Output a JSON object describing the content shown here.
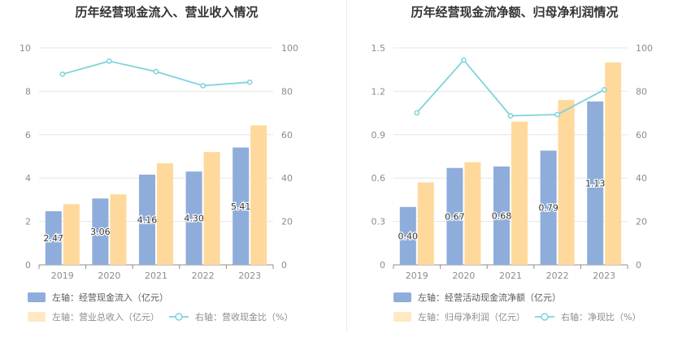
{
  "colors": {
    "primary": "#8FADDB",
    "secondary": "#FFD99B",
    "line": "#7ED3DB",
    "grid": "#E6E6E6",
    "axis": "#8C8C8C",
    "title": "#333333"
  },
  "chart_data": [
    {
      "type": "bar",
      "title": "历年经营现金流入、营业收入情况",
      "categories": [
        "2019",
        "2020",
        "2021",
        "2022",
        "2023"
      ],
      "left_axis": {
        "min": 0,
        "max": 10,
        "ticks": [
          "0",
          "2",
          "4",
          "6",
          "8",
          "10"
        ]
      },
      "right_axis": {
        "min": 0,
        "max": 100,
        "ticks": [
          "0",
          "20",
          "40",
          "60",
          "80",
          "100"
        ]
      },
      "series": [
        {
          "name": "左轴：经营现金流入（亿元）",
          "kind": "bar",
          "axis": "left",
          "color_key": "primary",
          "values": [
            2.47,
            3.06,
            4.16,
            4.3,
            5.41
          ],
          "labels": [
            "2.47",
            "3.06",
            "4.16",
            "4.30",
            "5.41"
          ]
        },
        {
          "name": "左轴：营业总收入（亿元）",
          "kind": "bar",
          "axis": "left",
          "color_key": "secondary",
          "values": [
            2.8,
            3.25,
            4.68,
            5.2,
            6.43
          ],
          "labels": []
        },
        {
          "name": "右轴：营收现金比（%）",
          "kind": "line",
          "axis": "right",
          "color_key": "line",
          "values": [
            87.9,
            93.9,
            89.1,
            82.6,
            84.2
          ],
          "labels": []
        }
      ],
      "legend": [
        "左轴：经营现金流入（亿元）",
        "左轴：营业总收入（亿元）",
        "右轴：营收现金比（%）"
      ]
    },
    {
      "type": "bar",
      "title": "历年经营现金流净额、归母净利润情况",
      "categories": [
        "2019",
        "2020",
        "2021",
        "2022",
        "2023"
      ],
      "left_axis": {
        "min": 0,
        "max": 1.5,
        "ticks": [
          "0",
          "0.3",
          "0.6",
          "0.9",
          "1.2",
          "1.5"
        ]
      },
      "right_axis": {
        "min": 0,
        "max": 100,
        "ticks": [
          "0",
          "20",
          "40",
          "60",
          "80",
          "100"
        ]
      },
      "series": [
        {
          "name": "左轴：经营活动现金流净额（亿元）",
          "kind": "bar",
          "axis": "left",
          "color_key": "primary",
          "values": [
            0.4,
            0.67,
            0.68,
            0.79,
            1.13
          ],
          "labels": [
            "0.40",
            "0.67",
            "0.68",
            "0.79",
            "1.13"
          ]
        },
        {
          "name": "左轴：归母净利润（亿元）",
          "kind": "bar",
          "axis": "left",
          "color_key": "secondary",
          "values": [
            0.57,
            0.71,
            0.99,
            1.14,
            1.4
          ],
          "labels": []
        },
        {
          "name": "右轴：净现比（%）",
          "kind": "line",
          "axis": "right",
          "color_key": "line",
          "values": [
            70.1,
            94.4,
            68.7,
            69.3,
            80.7
          ],
          "labels": []
        }
      ],
      "legend": [
        "左轴：经营活动现金流净额（亿元）",
        "左轴：归母净利润（亿元）",
        "右轴：净现比（%）"
      ]
    }
  ]
}
